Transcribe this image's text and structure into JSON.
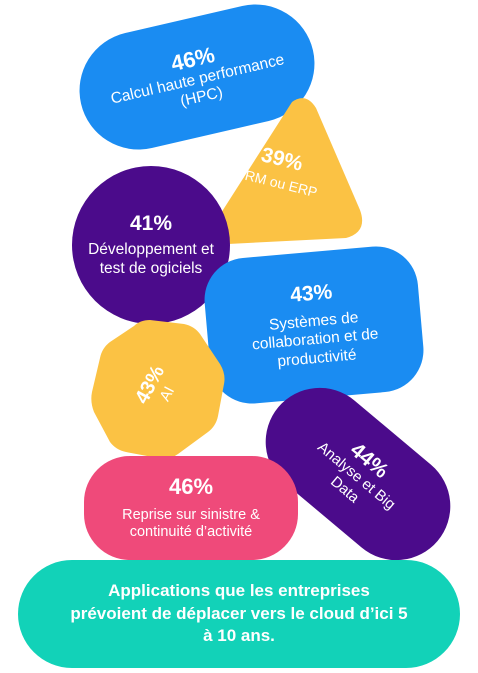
{
  "colors": {
    "blue": "#1a8cf2",
    "yellow": "#fbc244",
    "purple": "#4b0b8b",
    "pink": "#ef4a7a",
    "teal": "#12d2b8"
  },
  "items": [
    {
      "id": "hpc",
      "percent": "46%",
      "label": "Calcul haute performance (HPC)"
    },
    {
      "id": "crm",
      "percent": "39%",
      "label": "CRM ou ERP"
    },
    {
      "id": "dev",
      "percent": "41%",
      "label": "Développement et test de ogiciels"
    },
    {
      "id": "collab",
      "percent": "43%",
      "label": "Systèmes de collaboration et de productivité"
    },
    {
      "id": "ai",
      "percent": "43%",
      "label": "AI"
    },
    {
      "id": "bigdata",
      "percent": "44%",
      "label": "Analyse et Big Data"
    },
    {
      "id": "drp",
      "percent": "46%",
      "label": "Reprise sur sinistre & continuité d’activité"
    }
  ],
  "caption": "Applications que les entreprises prévoient de déplacer vers le cloud d’ici 5 à 10 ans."
}
